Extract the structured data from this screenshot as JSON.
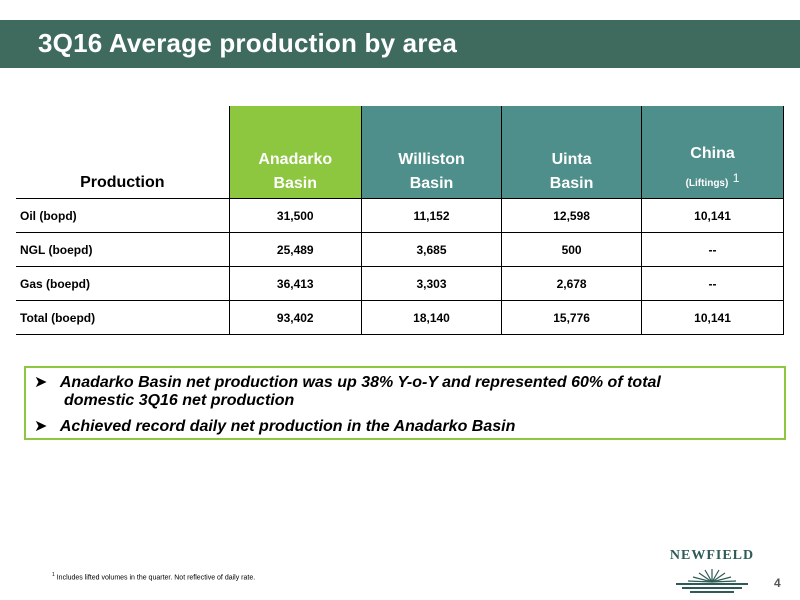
{
  "title": "3Q16 Average production by area",
  "table": {
    "row_header": "Production",
    "columns": [
      {
        "line1": "Anadarko",
        "line2": "Basin",
        "sub": "",
        "sup": "",
        "color": "#8dc63f"
      },
      {
        "line1": "Williston",
        "line2": "Basin",
        "sub": "",
        "sup": "",
        "color": "#4f8f8b"
      },
      {
        "line1": "Uinta",
        "line2": "Basin",
        "sub": "",
        "sup": "",
        "color": "#4f8f8b"
      },
      {
        "line1": "China",
        "line2": "",
        "sub": "(Liftings)",
        "sup": "1",
        "color": "#4f8f8b"
      }
    ],
    "rows": [
      {
        "label": "Oil (bopd)",
        "values": [
          "31,500",
          "11,152",
          "12,598",
          "10,141"
        ]
      },
      {
        "label": "NGL (boepd)",
        "values": [
          "25,489",
          "3,685",
          "500",
          "--"
        ]
      },
      {
        "label": "Gas (boepd)",
        "values": [
          "36,413",
          "3,303",
          "2,678",
          "--"
        ]
      },
      {
        "label": "Total (boepd)",
        "values": [
          "93,402",
          "18,140",
          "15,776",
          "10,141"
        ]
      }
    ]
  },
  "bullets": {
    "b1_line1": "Anadarko Basin net production was up 38% Y-o-Y and represented 60% of total",
    "b1_line2": "domestic 3Q16 net production",
    "b2": "Achieved record daily net production in the Anadarko Basin"
  },
  "footnote": {
    "mark": "1",
    "text": "Includes lifted volumes in the quarter. Not reflective of daily rate."
  },
  "logo": {
    "text": "NEWFIELD",
    "icon": "sunburst-logo-icon"
  },
  "page_number": "4",
  "colors": {
    "title_bar": "#3f6b5f",
    "accent_green": "#8dc63f",
    "teal": "#4f8f8b"
  }
}
